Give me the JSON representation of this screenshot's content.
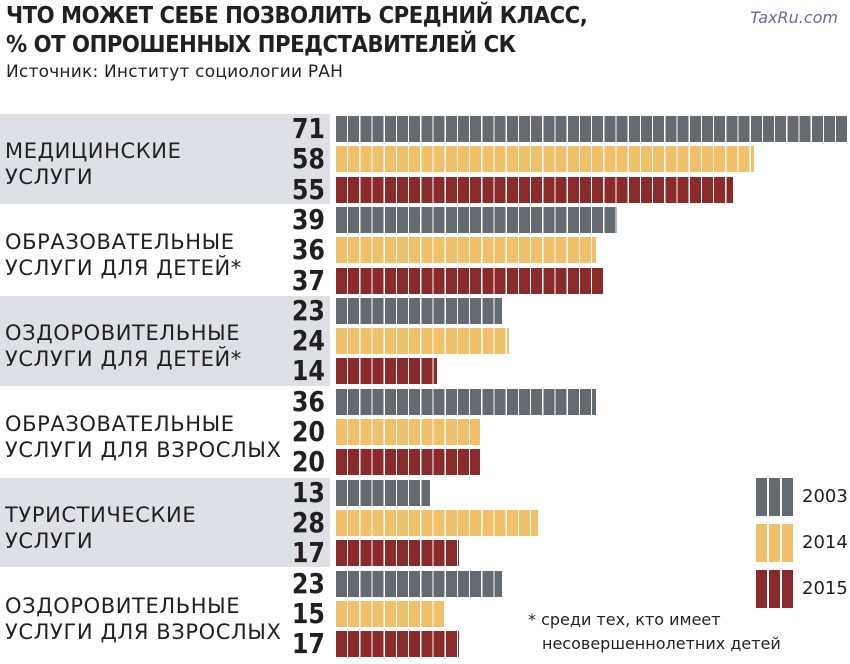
{
  "header": {
    "title_line1": "ЧТО МОЖЕТ СЕБЕ ПОЗВОЛИТЬ СРЕДНИЙ КЛАСС,",
    "title_line2": "% ОТ ОПРОШЕННЫХ ПРЕДСТАВИТЕЛЕЙ СК",
    "source": "Источник: Институт социологии РАН",
    "watermark": "TaxRu.com"
  },
  "chart_data": {
    "type": "bar",
    "orientation": "horizontal",
    "title": "ЧТО МОЖЕТ СЕБЕ ПОЗВОЛИТЬ СРЕДНИЙ КЛАСС, % ОТ ОПРОШЕННЫХ ПРЕДСТАВИТЕЛЕЙ СК",
    "categories": [
      [
        "МЕДИЦИНСКИЕ",
        "УСЛУГИ"
      ],
      [
        "ОБРАЗОВАТЕЛЬНЫЕ",
        "УСЛУГИ ДЛЯ ДЕТЕЙ*"
      ],
      [
        "ОЗДОРОВИТЕЛЬНЫЕ",
        "УСЛУГИ ДЛЯ ДЕТЕЙ*"
      ],
      [
        "ОБРАЗОВАТЕЛЬНЫЕ",
        "УСЛУГИ ДЛЯ ВЗРОСЛЫХ"
      ],
      [
        "ТУРИСТИЧЕСКИЕ",
        "УСЛУГИ"
      ],
      [
        "ОЗДОРОВИТЕЛЬНЫЕ",
        "УСЛУГИ ДЛЯ ВЗРОСЛЫХ"
      ]
    ],
    "series": [
      {
        "name": "2003",
        "color": "#636b71",
        "values": [
          71,
          39,
          23,
          36,
          13,
          23
        ]
      },
      {
        "name": "2014",
        "color": "#f0c06a",
        "values": [
          58,
          36,
          24,
          20,
          28,
          15
        ]
      },
      {
        "name": "2015",
        "color": "#8a2a2b",
        "values": [
          55,
          37,
          14,
          20,
          17,
          17
        ]
      }
    ],
    "xlim": [
      0,
      71
    ],
    "legend_position": "bottom-right",
    "footnote_line1": "* среди тех, кто имеет",
    "footnote_line2": "несовершеннолетних детей"
  }
}
